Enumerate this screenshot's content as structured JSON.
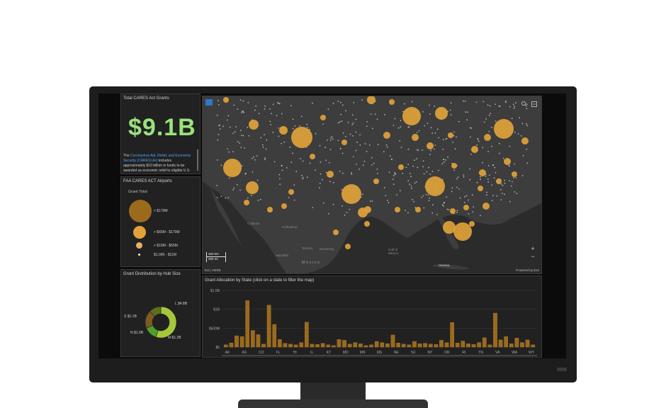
{
  "kpi": {
    "title": "Total CARES Act Grants",
    "value": "$9.1B",
    "description_link": "Coronavirus Aid, Relief, and Economic Security (CARES) Act",
    "description_pre": "The ",
    "description_post": " includes approximately $10 billion in funds to be awarded as economic relief to eligible U.S."
  },
  "legend": {
    "title": "FAA CARES ACT Airports",
    "subtitle": "Grant Total",
    "items": [
      {
        "label": "> $170M"
      },
      {
        "label": "> $65M - $170M"
      },
      {
        "label": "> $19M - $65M"
      },
      {
        "label": "$1,000 - $11M"
      }
    ],
    "color": "#e0a23a",
    "dark_color": "#9b6a1c"
  },
  "donut": {
    "title": "Grant Distribution by Hub Size",
    "segments": [
      {
        "label": "L $4.8B",
        "value": 4.8,
        "color": "#a5c83a"
      },
      {
        "label": "M $1.2B",
        "value": 1.2,
        "color": "#4e9e2a"
      },
      {
        "label": "N $1.6B",
        "value": 1.6,
        "color": "#7c5a22"
      },
      {
        "label": "S $1.1B",
        "value": 1.1,
        "color": "#5e6f1f"
      }
    ]
  },
  "map": {
    "labels": [
      "Chihuahua",
      "Mazatlán",
      "Culiacán",
      "Torreón",
      "Monterrey",
      "México",
      "Gulf of Mexico",
      "Havana"
    ],
    "attribution": "Esri, HERE",
    "powered": "Powered by Esri",
    "scale_km": "400 km",
    "scale_mi": "200 mi",
    "zoom_in": "+",
    "zoom_out": "−",
    "bubble_color": "#e0a23a",
    "dot_color": "#d9d9d9"
  },
  "chart_data": {
    "type": "bar",
    "title": "Grant Allocation by State (click on a state to filter the map)",
    "x_tick_labels": [
      "AK",
      "AS",
      "CO",
      "FL",
      "HI",
      "IL",
      "KY",
      "MD",
      "MN",
      "MS",
      "NE",
      "NJ",
      "NY",
      "OR",
      "RI",
      "TN",
      "VA",
      "WA",
      "WY"
    ],
    "y_ticks": [
      "$1.5B",
      "$1B",
      "$500M",
      "$0"
    ],
    "ylim": [
      0,
      1500000000
    ],
    "grid": true,
    "bar_color": "#9b6a1c",
    "values": [
      60,
      110,
      300,
      280,
      1230,
      440,
      330,
      80,
      1110,
      600,
      200,
      100,
      80,
      60,
      120,
      660,
      80,
      70,
      100,
      60,
      40,
      200,
      180,
      80,
      120,
      90,
      40,
      60,
      150,
      120,
      90,
      320,
      110,
      80,
      60,
      150,
      90,
      100,
      80,
      70,
      180,
      120,
      650,
      110,
      160,
      90,
      70,
      120,
      250,
      60,
      900,
      190,
      280,
      90,
      240,
      120,
      190,
      60
    ]
  }
}
